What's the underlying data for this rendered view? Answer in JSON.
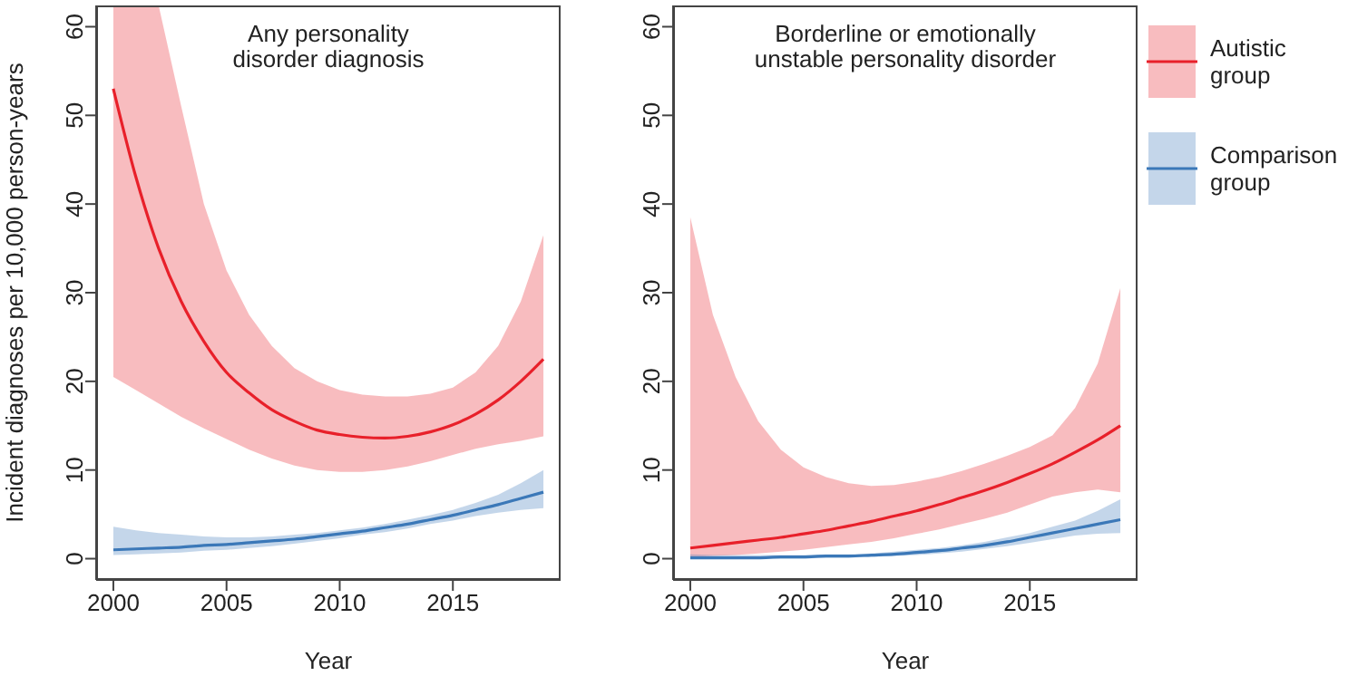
{
  "chart_data": [
    {
      "type": "line",
      "title": "Any personality\ndisorder diagnosis",
      "xlabel": "Year",
      "ylabel": "Incident diagnoses per 10,000 person-years",
      "x": [
        2000,
        2001,
        2002,
        2003,
        2004,
        2005,
        2006,
        2007,
        2008,
        2009,
        2010,
        2011,
        2012,
        2013,
        2014,
        2015,
        2016,
        2017,
        2018,
        2019
      ],
      "xlim": [
        1999.24,
        2019.76
      ],
      "xticks": [
        2000,
        2005,
        2010,
        2015
      ],
      "ylim": [
        -2.4,
        62.4
      ],
      "yticks": [
        0,
        10,
        20,
        30,
        40,
        50,
        60
      ],
      "grid": false,
      "legend": false,
      "marker": "none",
      "series": [
        {
          "color": "#e8202a",
          "values": [
            53,
            43,
            35,
            29,
            24.5,
            21,
            18.7,
            16.8,
            15.5,
            14.5,
            14,
            13.7,
            13.6,
            13.8,
            14.3,
            15.1,
            16.3,
            17.9,
            20,
            22.5
          ],
          "lower": [
            20.5,
            19,
            17.5,
            16,
            14.7,
            13.5,
            12.3,
            11.3,
            10.5,
            10,
            9.8,
            9.8,
            10,
            10.4,
            11,
            11.7,
            12.4,
            12.9,
            13.3,
            13.8
          ],
          "upper": [
            62.4,
            62.4,
            62.4,
            51,
            40,
            32.5,
            27.5,
            24,
            21.5,
            20,
            19,
            18.5,
            18.3,
            18.3,
            18.6,
            19.3,
            21,
            24,
            29,
            36.5
          ]
        },
        {
          "color": "#3b78b8",
          "values": [
            1,
            1.1,
            1.2,
            1.3,
            1.5,
            1.6,
            1.8,
            2,
            2.2,
            2.5,
            2.8,
            3.1,
            3.5,
            3.9,
            4.4,
            4.9,
            5.5,
            6.1,
            6.8,
            7.5
          ],
          "lower": [
            0.4,
            0.5,
            0.6,
            0.7,
            0.9,
            1,
            1.2,
            1.4,
            1.7,
            2,
            2.3,
            2.7,
            3,
            3.4,
            3.9,
            4.3,
            4.8,
            5.2,
            5.5,
            5.7
          ],
          "upper": [
            3.6,
            3.2,
            2.9,
            2.7,
            2.5,
            2.4,
            2.4,
            2.5,
            2.7,
            2.9,
            3.2,
            3.5,
            3.9,
            4.4,
            4.9,
            5.5,
            6.3,
            7.2,
            8.5,
            10
          ]
        }
      ]
    },
    {
      "type": "line",
      "title": "Borderline or emotionally\nunstable personality disorder",
      "xlabel": "Year",
      "x": [
        2000,
        2001,
        2002,
        2003,
        2004,
        2005,
        2006,
        2007,
        2008,
        2009,
        2010,
        2011,
        2012,
        2013,
        2014,
        2015,
        2016,
        2017,
        2018,
        2019
      ],
      "xlim": [
        1999.24,
        2019.76
      ],
      "xticks": [
        2000,
        2005,
        2010,
        2015
      ],
      "ylim": [
        -2.4,
        62.4
      ],
      "yticks": [
        0,
        10,
        20,
        30,
        40,
        50,
        60
      ],
      "grid": false,
      "legend": "right",
      "marker": "none",
      "series": [
        {
          "name": "Autistic\ngroup",
          "color": "#e8202a",
          "values": [
            1.2,
            1.5,
            1.8,
            2.1,
            2.4,
            2.8,
            3.2,
            3.7,
            4.2,
            4.8,
            5.4,
            6.1,
            6.9,
            7.7,
            8.6,
            9.6,
            10.7,
            12,
            13.4,
            15
          ],
          "lower": [
            0.2,
            0.3,
            0.4,
            0.6,
            0.8,
            1,
            1.3,
            1.6,
            1.9,
            2.3,
            2.8,
            3.3,
            3.9,
            4.5,
            5.2,
            6.1,
            7,
            7.5,
            7.8,
            7.5
          ],
          "upper": [
            38.5,
            27.5,
            20.5,
            15.5,
            12.3,
            10.3,
            9.2,
            8.5,
            8.2,
            8.3,
            8.7,
            9.2,
            9.9,
            10.7,
            11.6,
            12.6,
            13.9,
            17,
            22,
            30.5
          ]
        },
        {
          "name": "Comparison\ngroup",
          "color": "#3b78b8",
          "values": [
            0.1,
            0.1,
            0.1,
            0.1,
            0.2,
            0.2,
            0.3,
            0.3,
            0.4,
            0.5,
            0.7,
            0.9,
            1.2,
            1.5,
            1.9,
            2.4,
            2.9,
            3.4,
            3.9,
            4.4
          ],
          "lower": [
            0,
            0,
            0,
            0,
            0,
            0,
            0.1,
            0.1,
            0.2,
            0.3,
            0.4,
            0.6,
            0.8,
            1.1,
            1.4,
            1.8,
            2.2,
            2.6,
            2.8,
            2.9
          ],
          "upper": [
            0.5,
            0.4,
            0.4,
            0.4,
            0.4,
            0.4,
            0.5,
            0.5,
            0.6,
            0.8,
            1,
            1.2,
            1.5,
            1.9,
            2.4,
            2.9,
            3.6,
            4.3,
            5.4,
            6.7
          ]
        }
      ]
    }
  ]
}
